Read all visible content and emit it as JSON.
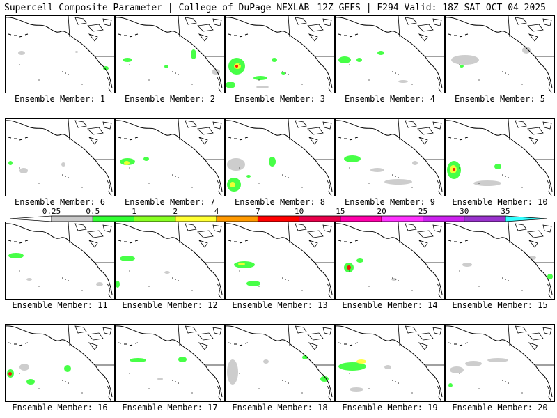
{
  "header": {
    "title": "Supercell Composite Parameter | College of DuPage NEXLAB",
    "valid": "12Z GEFS | F294 Valid: 18Z SAT OCT 04 2025"
  },
  "panels": [
    {
      "label": "Ensemble Member: 1"
    },
    {
      "label": "Ensemble Member: 2"
    },
    {
      "label": "Ensemble Member: 3"
    },
    {
      "label": "Ensemble Member: 4"
    },
    {
      "label": "Ensemble Member: 5"
    },
    {
      "label": "Ensemble Member: 6"
    },
    {
      "label": "Ensemble Member: 7"
    },
    {
      "label": "Ensemble Member: 8"
    },
    {
      "label": "Ensemble Member: 9"
    },
    {
      "label": "Ensemble Member: 10"
    },
    {
      "label": "Ensemble Member: 11"
    },
    {
      "label": "Ensemble Member: 12"
    },
    {
      "label": "Ensemble Member: 13"
    },
    {
      "label": "Ensemble Member: 14"
    },
    {
      "label": "Ensemble Member: 15"
    },
    {
      "label": "Ensemble Member: 16"
    },
    {
      "label": "Ensemble Member: 17"
    },
    {
      "label": "Ensemble Member: 18"
    },
    {
      "label": "Ensemble Member: 19"
    },
    {
      "label": "Ensemble Member: 20"
    }
  ],
  "colorbar": {
    "ticks": [
      "0.25",
      "0.5",
      "1",
      "2",
      "4",
      "7",
      "10",
      "15",
      "20",
      "25",
      "30",
      "35"
    ],
    "colors": [
      "#c8c8c8",
      "#33ff33",
      "#88ff22",
      "#ffff33",
      "#ff9900",
      "#ff0000",
      "#e8004a",
      "#ff00aa",
      "#ff33ff",
      "#cc22ee",
      "#9933cc",
      "#33ffff"
    ]
  }
}
